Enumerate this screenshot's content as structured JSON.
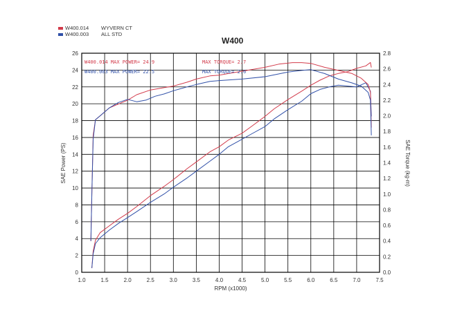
{
  "legend": [
    {
      "name": "W400.014",
      "desc": "WYVERN CT",
      "color": "#d23a4a"
    },
    {
      "name": "W400.003",
      "desc": "ALL STD",
      "color": "#3050a8"
    }
  ],
  "annotations": {
    "red_power": "W400.014  MAX POWER= 24.9",
    "blue_power": "W400.003  MAX POWER= 22.5",
    "red_torque": "MAX TORQUE= 2.7",
    "blue_torque": "MAX TORQUE= 2.6"
  },
  "chart_data": {
    "type": "line",
    "title": "W400",
    "xlabel": "RPM (x1000)",
    "ylabel": "SAE Power (PS)",
    "y2label": "SAE Torque (kg-m)",
    "xlim": [
      1.0,
      7.5
    ],
    "ylim": [
      0,
      26
    ],
    "y2lim": [
      0.0,
      2.8
    ],
    "x_ticks": [
      "1.0",
      "1.5",
      "2.0",
      "2.5",
      "3.0",
      "3.5",
      "4.0",
      "4.5",
      "5.0",
      "5.5",
      "6.0",
      "6.5",
      "7.0",
      "7.5"
    ],
    "y_ticks": [
      "0",
      "2",
      "4",
      "6",
      "8",
      "10",
      "12",
      "14",
      "16",
      "18",
      "20",
      "22",
      "24",
      "26"
    ],
    "y2_ticks": [
      "0.0",
      "0.2",
      "0.4",
      "0.6",
      "0.8",
      "1.0",
      "1.2",
      "1.4",
      "1.6",
      "1.8",
      "2.0",
      "2.2",
      "2.4",
      "2.6",
      "2.8"
    ],
    "grid": true,
    "colors": {
      "red": "#d23a4a",
      "blue": "#3050a8"
    },
    "series": [
      {
        "name": "W400.014",
        "axis": "power",
        "x": [
          1.22,
          1.25,
          1.3,
          1.4,
          1.6,
          1.8,
          2.0,
          2.2,
          2.5,
          2.8,
          3.0,
          3.3,
          3.5,
          3.8,
          4.0,
          4.2,
          4.5,
          4.7,
          5.0,
          5.2,
          5.5,
          5.8,
          6.0,
          6.2,
          6.4,
          6.6,
          6.8,
          7.0,
          7.2,
          7.3,
          7.32
        ],
        "y": [
          0.5,
          2.5,
          3.8,
          4.7,
          5.5,
          6.3,
          7.0,
          7.8,
          9.1,
          10.2,
          11.0,
          12.3,
          13.1,
          14.3,
          14.9,
          15.7,
          16.5,
          17.3,
          18.5,
          19.4,
          20.5,
          21.5,
          22.2,
          22.8,
          23.3,
          23.6,
          23.8,
          24.2,
          24.5,
          24.9,
          24.3
        ]
      },
      {
        "name": "W400.003",
        "axis": "power",
        "x": [
          1.22,
          1.25,
          1.3,
          1.4,
          1.6,
          1.8,
          2.0,
          2.2,
          2.5,
          2.8,
          3.0,
          3.3,
          3.5,
          3.8,
          4.0,
          4.2,
          4.5,
          4.7,
          5.0,
          5.2,
          5.5,
          5.8,
          6.0,
          6.2,
          6.4,
          6.6,
          6.8,
          7.0,
          7.2,
          7.3,
          7.32
        ],
        "y": [
          0.5,
          2.2,
          3.4,
          4.1,
          5.0,
          5.8,
          6.5,
          7.2,
          8.3,
          9.3,
          10.1,
          11.2,
          12.0,
          13.2,
          14.0,
          14.9,
          15.8,
          16.4,
          17.3,
          18.2,
          19.3,
          20.3,
          21.2,
          21.7,
          22.0,
          22.2,
          22.1,
          22.0,
          22.5,
          21.5,
          18.5
        ]
      },
      {
        "name": "W400.014",
        "axis": "torque",
        "x": [
          1.2,
          1.22,
          1.25,
          1.3,
          1.4,
          1.6,
          1.8,
          2.0,
          2.2,
          2.5,
          2.8,
          3.0,
          3.3,
          3.5,
          3.8,
          4.0,
          4.3,
          4.6,
          5.0,
          5.3,
          5.6,
          5.8,
          6.0,
          6.3,
          6.6,
          6.9,
          7.1,
          7.25,
          7.3,
          7.32
        ],
        "y": [
          0.4,
          1.0,
          1.75,
          1.95,
          2.0,
          2.1,
          2.15,
          2.2,
          2.27,
          2.33,
          2.36,
          2.38,
          2.43,
          2.47,
          2.51,
          2.52,
          2.55,
          2.58,
          2.62,
          2.66,
          2.68,
          2.68,
          2.67,
          2.62,
          2.58,
          2.54,
          2.48,
          2.4,
          2.3,
          1.85
        ]
      },
      {
        "name": "W400.003",
        "axis": "torque",
        "x": [
          1.2,
          1.22,
          1.25,
          1.3,
          1.4,
          1.6,
          1.8,
          2.0,
          2.2,
          2.4,
          2.6,
          2.8,
          3.0,
          3.3,
          3.5,
          3.8,
          4.0,
          4.5,
          5.0,
          5.5,
          5.8,
          6.0,
          6.3,
          6.6,
          6.9,
          7.1,
          7.25,
          7.3,
          7.32
        ],
        "y": [
          0.4,
          1.0,
          1.7,
          1.95,
          2.0,
          2.1,
          2.17,
          2.21,
          2.18,
          2.2,
          2.25,
          2.28,
          2.32,
          2.37,
          2.4,
          2.44,
          2.45,
          2.47,
          2.5,
          2.56,
          2.58,
          2.59,
          2.54,
          2.47,
          2.42,
          2.38,
          2.3,
          2.2,
          1.75
        ]
      }
    ]
  }
}
